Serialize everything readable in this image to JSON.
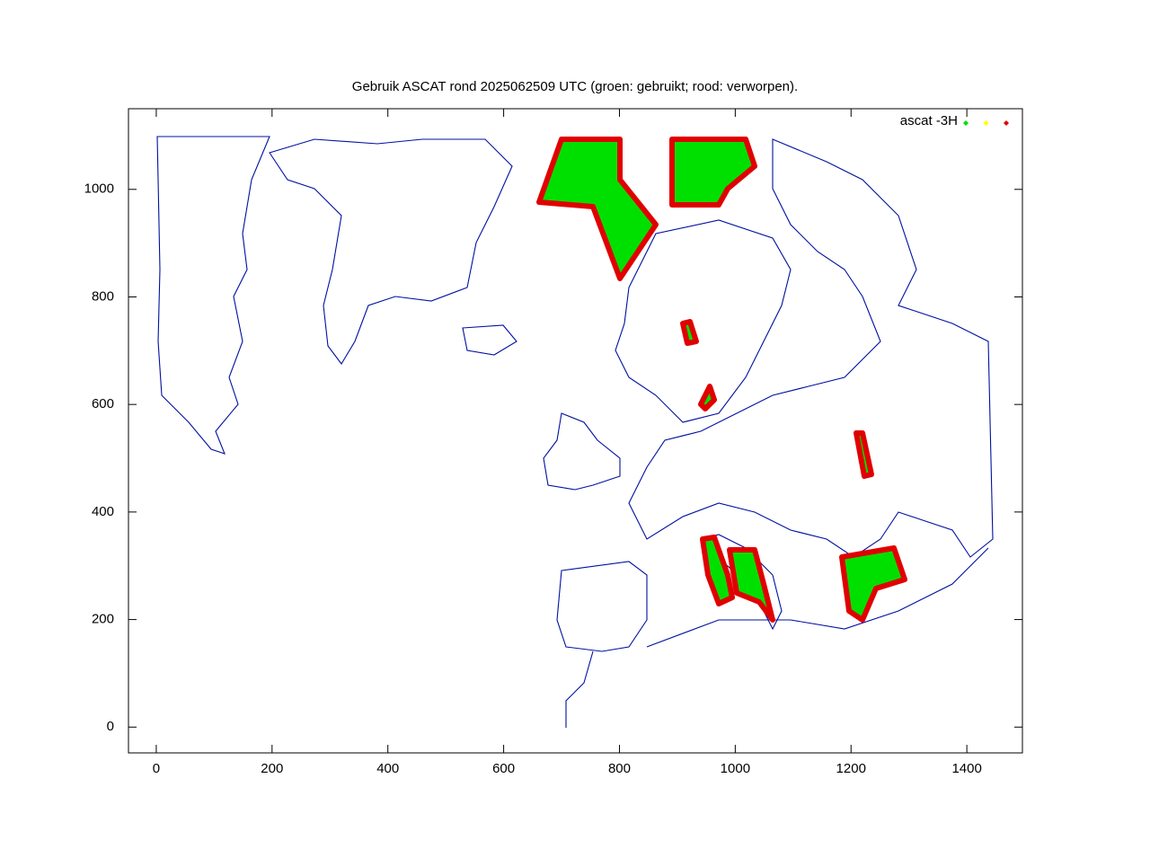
{
  "chart_data": {
    "type": "map",
    "title": "Gebruik ASCAT rond 2025062509 UTC (groen: gebruikt; rood: verworpen).",
    "legend": {
      "label": "ascat -3H",
      "colors": [
        "#00e000",
        "#ffff00",
        "#e00000"
      ]
    },
    "xlim": [
      -48,
      1496
    ],
    "ylim": [
      -48,
      1150
    ],
    "xticks": [
      0,
      200,
      400,
      600,
      800,
      1000,
      1200,
      1400
    ],
    "yticks": [
      0,
      200,
      400,
      600,
      800,
      1000
    ]
  }
}
